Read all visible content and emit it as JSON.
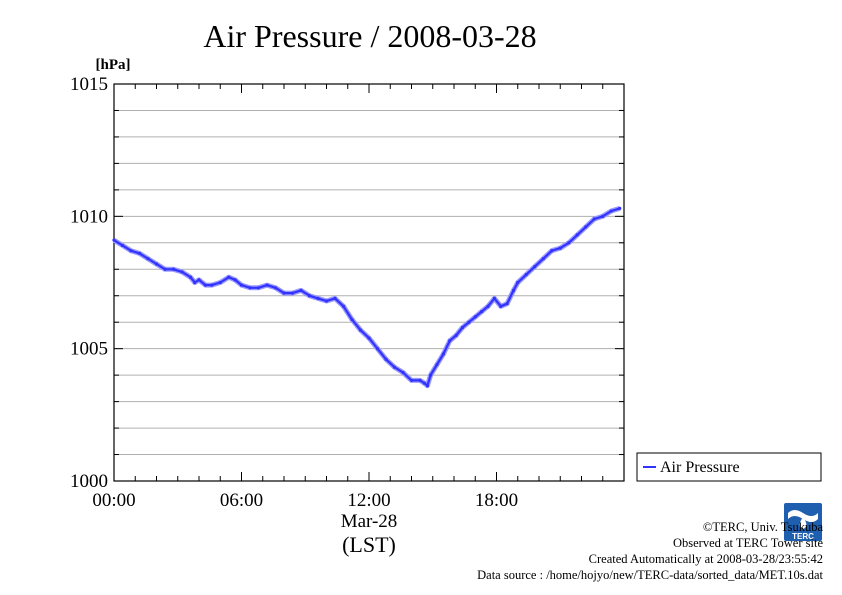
{
  "chart_data": {
    "type": "line",
    "title": "Air Pressure / 2008-03-28",
    "ylabel": "[hPa]",
    "xlabel_date": "Mar-28",
    "xlabel_tz": "(LST)",
    "ylim": [
      1000,
      1015
    ],
    "xlim": [
      0,
      24
    ],
    "y_ticks": [
      "1000",
      "1005",
      "1010",
      "1015"
    ],
    "x_ticks": [
      {
        "value": 0,
        "label": "00:00"
      },
      {
        "value": 6,
        "label": "06:00"
      },
      {
        "value": 12,
        "label": "12:00"
      },
      {
        "value": 18,
        "label": "18:00"
      }
    ],
    "grid": true,
    "legend_position": "right-bottom",
    "series": [
      {
        "name": "Air Pressure",
        "color": "#3333ff",
        "x": [
          0.0,
          0.4,
          0.8,
          1.2,
          1.6,
          2.0,
          2.4,
          2.8,
          3.2,
          3.6,
          3.8,
          4.0,
          4.3,
          4.6,
          5.0,
          5.4,
          5.7,
          6.0,
          6.4,
          6.8,
          7.2,
          7.6,
          8.0,
          8.4,
          8.8,
          9.2,
          9.6,
          10.0,
          10.4,
          10.8,
          11.2,
          11.6,
          12.0,
          12.4,
          12.8,
          13.2,
          13.6,
          14.0,
          14.4,
          14.6,
          14.75,
          14.9,
          15.2,
          15.5,
          15.8,
          16.1,
          16.4,
          16.7,
          17.0,
          17.3,
          17.6,
          17.9,
          18.2,
          18.5,
          18.8,
          19.0,
          19.4,
          19.8,
          20.2,
          20.6,
          21.0,
          21.4,
          21.8,
          22.2,
          22.6,
          23.0,
          23.4,
          23.8
        ],
        "values": [
          1009.1,
          1008.9,
          1008.7,
          1008.6,
          1008.4,
          1008.2,
          1008.0,
          1008.0,
          1007.9,
          1007.7,
          1007.5,
          1007.6,
          1007.4,
          1007.4,
          1007.5,
          1007.7,
          1007.6,
          1007.4,
          1007.3,
          1007.3,
          1007.4,
          1007.3,
          1007.1,
          1007.1,
          1007.2,
          1007.0,
          1006.9,
          1006.8,
          1006.9,
          1006.6,
          1006.1,
          1005.7,
          1005.4,
          1005.0,
          1004.6,
          1004.3,
          1004.1,
          1003.8,
          1003.8,
          1003.7,
          1003.6,
          1004.0,
          1004.4,
          1004.8,
          1005.3,
          1005.5,
          1005.8,
          1006.0,
          1006.2,
          1006.4,
          1006.6,
          1006.9,
          1006.6,
          1006.7,
          1007.2,
          1007.5,
          1007.8,
          1008.1,
          1008.4,
          1008.7,
          1008.8,
          1009.0,
          1009.3,
          1009.6,
          1009.9,
          1010.0,
          1010.2,
          1010.3
        ]
      }
    ]
  },
  "credits": {
    "copyright": "©TERC, Univ. Tsukuba",
    "observed": "Observed at TERC Tower site",
    "created": "Created Automatically at 2008-03-28/23:55:42",
    "source": "Data source : /home/hojyo/new/TERC-data/sorted_data/MET.10s.dat"
  },
  "logo": {
    "text": "TERC",
    "icon": "terc-logo-icon",
    "color": "#1f5fb0"
  }
}
